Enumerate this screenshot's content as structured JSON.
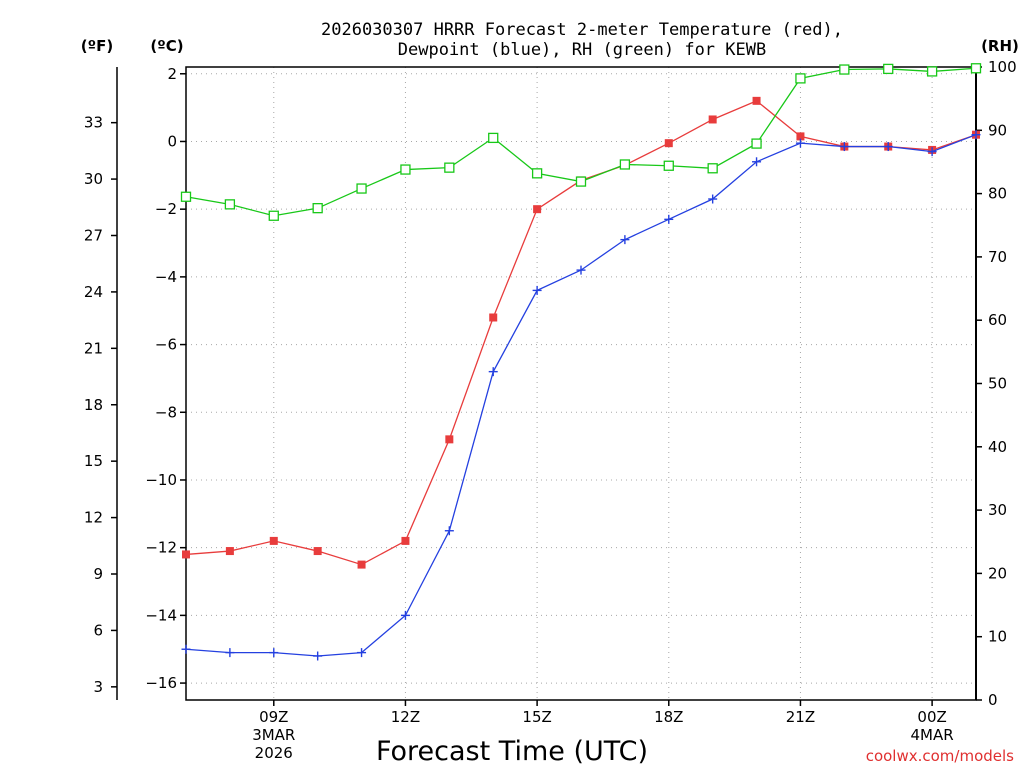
{
  "chart_data": {
    "type": "line",
    "title_line1": "2026030307 HRRR Forecast 2-meter Temperature (red),",
    "title_line2": "Dewpoint (blue), RH (green) for KEWB",
    "xlabel": "Forecast Time (UTC)",
    "credit": "coolwx.com/models",
    "units": {
      "f": "(ºF)",
      "c": "(ºC)",
      "rh": "(RH)"
    },
    "x_hours": [
      7,
      8,
      9,
      10,
      11,
      12,
      13,
      14,
      15,
      16,
      17,
      18,
      19,
      20,
      21,
      22,
      23,
      24,
      25
    ],
    "x_ticks": [
      {
        "hour": 9,
        "label": "09Z",
        "sub1": "3MAR",
        "sub2": "2026"
      },
      {
        "hour": 12,
        "label": "12Z",
        "sub1": "",
        "sub2": ""
      },
      {
        "hour": 15,
        "label": "15Z",
        "sub1": "",
        "sub2": ""
      },
      {
        "hour": 18,
        "label": "18Z",
        "sub1": "",
        "sub2": ""
      },
      {
        "hour": 21,
        "label": "21Z",
        "sub1": "",
        "sub2": ""
      },
      {
        "hour": 24,
        "label": "00Z",
        "sub1": "4MAR",
        "sub2": ""
      }
    ],
    "x_range": [
      7,
      25
    ],
    "c_axis": {
      "range": [
        -16.5,
        2.2
      ],
      "ticks": [
        2,
        0,
        -2,
        -4,
        -6,
        -8,
        -10,
        -12,
        -14,
        -16
      ]
    },
    "f_axis": {
      "ticks": [
        33,
        30,
        27,
        24,
        21,
        18,
        15,
        12,
        9,
        6,
        3
      ]
    },
    "rh_axis": {
      "range": [
        0,
        100
      ],
      "ticks": [
        100,
        90,
        80,
        70,
        60,
        50,
        40,
        30,
        20,
        10,
        0
      ]
    },
    "colors": {
      "temperature": "#e83c3c",
      "dewpoint": "#2440e0",
      "rh": "#18c818",
      "grid": "#a8a8a8"
    },
    "series": [
      {
        "name": "Temperature",
        "unit": "C",
        "marker": "filled-square",
        "values": [
          -12.2,
          -12.1,
          -11.8,
          -12.1,
          -12.5,
          -11.8,
          -8.8,
          -5.2,
          -2.0,
          -1.15,
          -0.7,
          -0.05,
          0.65,
          1.2,
          0.15,
          -0.15,
          -0.15,
          -0.25,
          0.2
        ]
      },
      {
        "name": "Dewpoint",
        "unit": "C",
        "marker": "plus",
        "values": [
          -15.0,
          -15.1,
          -15.1,
          -15.2,
          -15.1,
          -14.0,
          -11.5,
          -6.8,
          -4.4,
          -3.8,
          -2.9,
          -2.3,
          -1.7,
          -0.6,
          -0.05,
          -0.15,
          -0.15,
          -0.3,
          0.2
        ]
      },
      {
        "name": "RH",
        "unit": "%",
        "marker": "open-square",
        "values": [
          79.5,
          78.3,
          76.5,
          77.7,
          80.8,
          83.8,
          84.1,
          88.8,
          83.2,
          81.9,
          84.6,
          84.4,
          84.0,
          87.9,
          98.2,
          99.6,
          99.7,
          99.3,
          99.8
        ]
      }
    ]
  }
}
